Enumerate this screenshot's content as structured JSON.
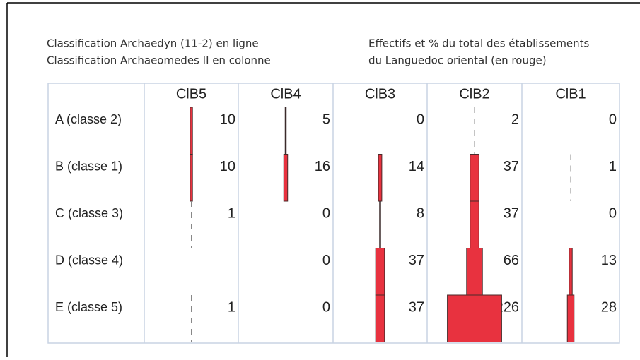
{
  "chart_data": {
    "type": "matrix",
    "title": [
      "Classification Archaedyn (11-2) en ligne",
      "Classification Archaeomedes II en colonne"
    ],
    "subtitle": [
      "Effectifs et % du total des établissements",
      "du Languedoc oriental (en rouge)"
    ],
    "columns": [
      "ClB5",
      "ClB4",
      "ClB3",
      "ClB2",
      "ClB1"
    ],
    "categories": [
      "A (classe 2)",
      "B (classe 1)",
      "C (classe 3)",
      "D (classe 4)",
      "E (classe 5)"
    ],
    "values": [
      [
        10,
        5,
        0,
        2,
        0
      ],
      [
        10,
        16,
        14,
        37,
        1
      ],
      [
        1,
        0,
        8,
        37,
        0
      ],
      [
        null,
        0,
        37,
        66,
        13
      ],
      [
        1,
        0,
        37,
        226,
        28
      ]
    ],
    "color": "#e8323f"
  }
}
